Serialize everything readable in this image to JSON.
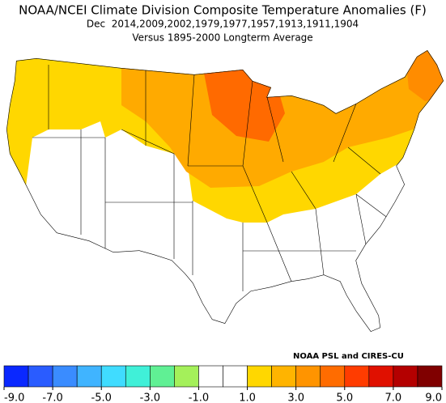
{
  "header": {
    "title": "NOAA/NCEI Climate Division Composite Temperature Anomalies (F)",
    "subtitle": "Dec  2014,2009,2002,1979,1977,1957,1913,1911,1904",
    "baseline": "Versus 1895-2000 Longterm Average"
  },
  "credit": "NOAA PSL and CIRES-CU",
  "colorbar": {
    "bins": [
      -9,
      -8,
      -7,
      -6,
      -5,
      -4,
      -3,
      -2,
      -1,
      0,
      1,
      2,
      3,
      4,
      5,
      6,
      7,
      8,
      9
    ],
    "colors": [
      "#0a28ff",
      "#2a5cff",
      "#3a8cff",
      "#40b4ff",
      "#40dcff",
      "#40f0d8",
      "#60f094",
      "#a4f05a",
      "#ffffff",
      "#ffffff",
      "#ffd700",
      "#ffb400",
      "#ff9400",
      "#ff6c00",
      "#ff3c00",
      "#e01000",
      "#b40000",
      "#800000"
    ],
    "ticks": [
      {
        "value": -9,
        "label": "-9.0"
      },
      {
        "value": -7,
        "label": "-7.0"
      },
      {
        "value": -5,
        "label": "-5.0"
      },
      {
        "value": -3,
        "label": "-3.0"
      },
      {
        "value": -1,
        "label": "-1.0"
      },
      {
        "value": 1,
        "label": "1.0"
      },
      {
        "value": 3,
        "label": "3.0"
      },
      {
        "value": 5,
        "label": "5.0"
      },
      {
        "value": 7,
        "label": "7.0"
      },
      {
        "value": 9,
        "label": "9.0"
      }
    ]
  }
}
